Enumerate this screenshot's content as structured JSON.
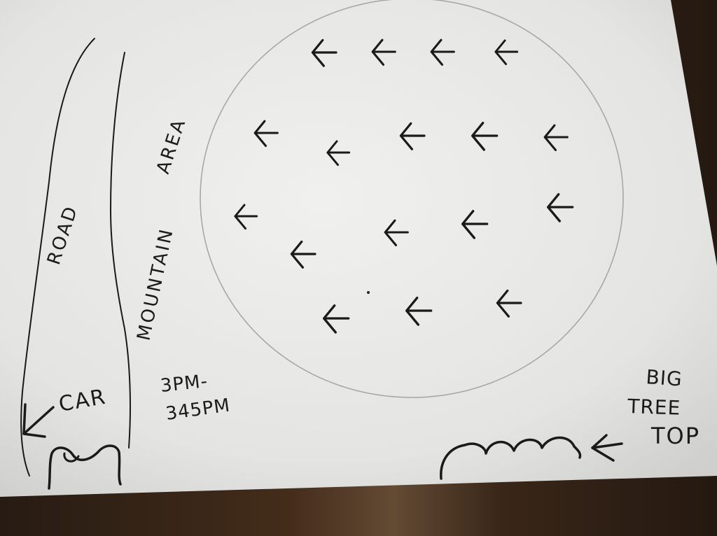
{
  "sketch": {
    "labels": {
      "road": "ROAD",
      "mountain": "MOUNTAIN",
      "area": "AREA",
      "car": "CAR",
      "time_start": "3PM-",
      "time_end": "345PM",
      "big": "BIG",
      "tree": "TREE",
      "top": "TOP"
    },
    "arrow_count": 16,
    "colors": {
      "paper": "#e8e8e6",
      "ink": "#1a1a1a",
      "pencil": "#9c9c9c",
      "table": "#3a2a1e"
    },
    "icons": [
      "bird-icon",
      "car-icon",
      "tree-icon",
      "arrow-icon"
    ]
  }
}
